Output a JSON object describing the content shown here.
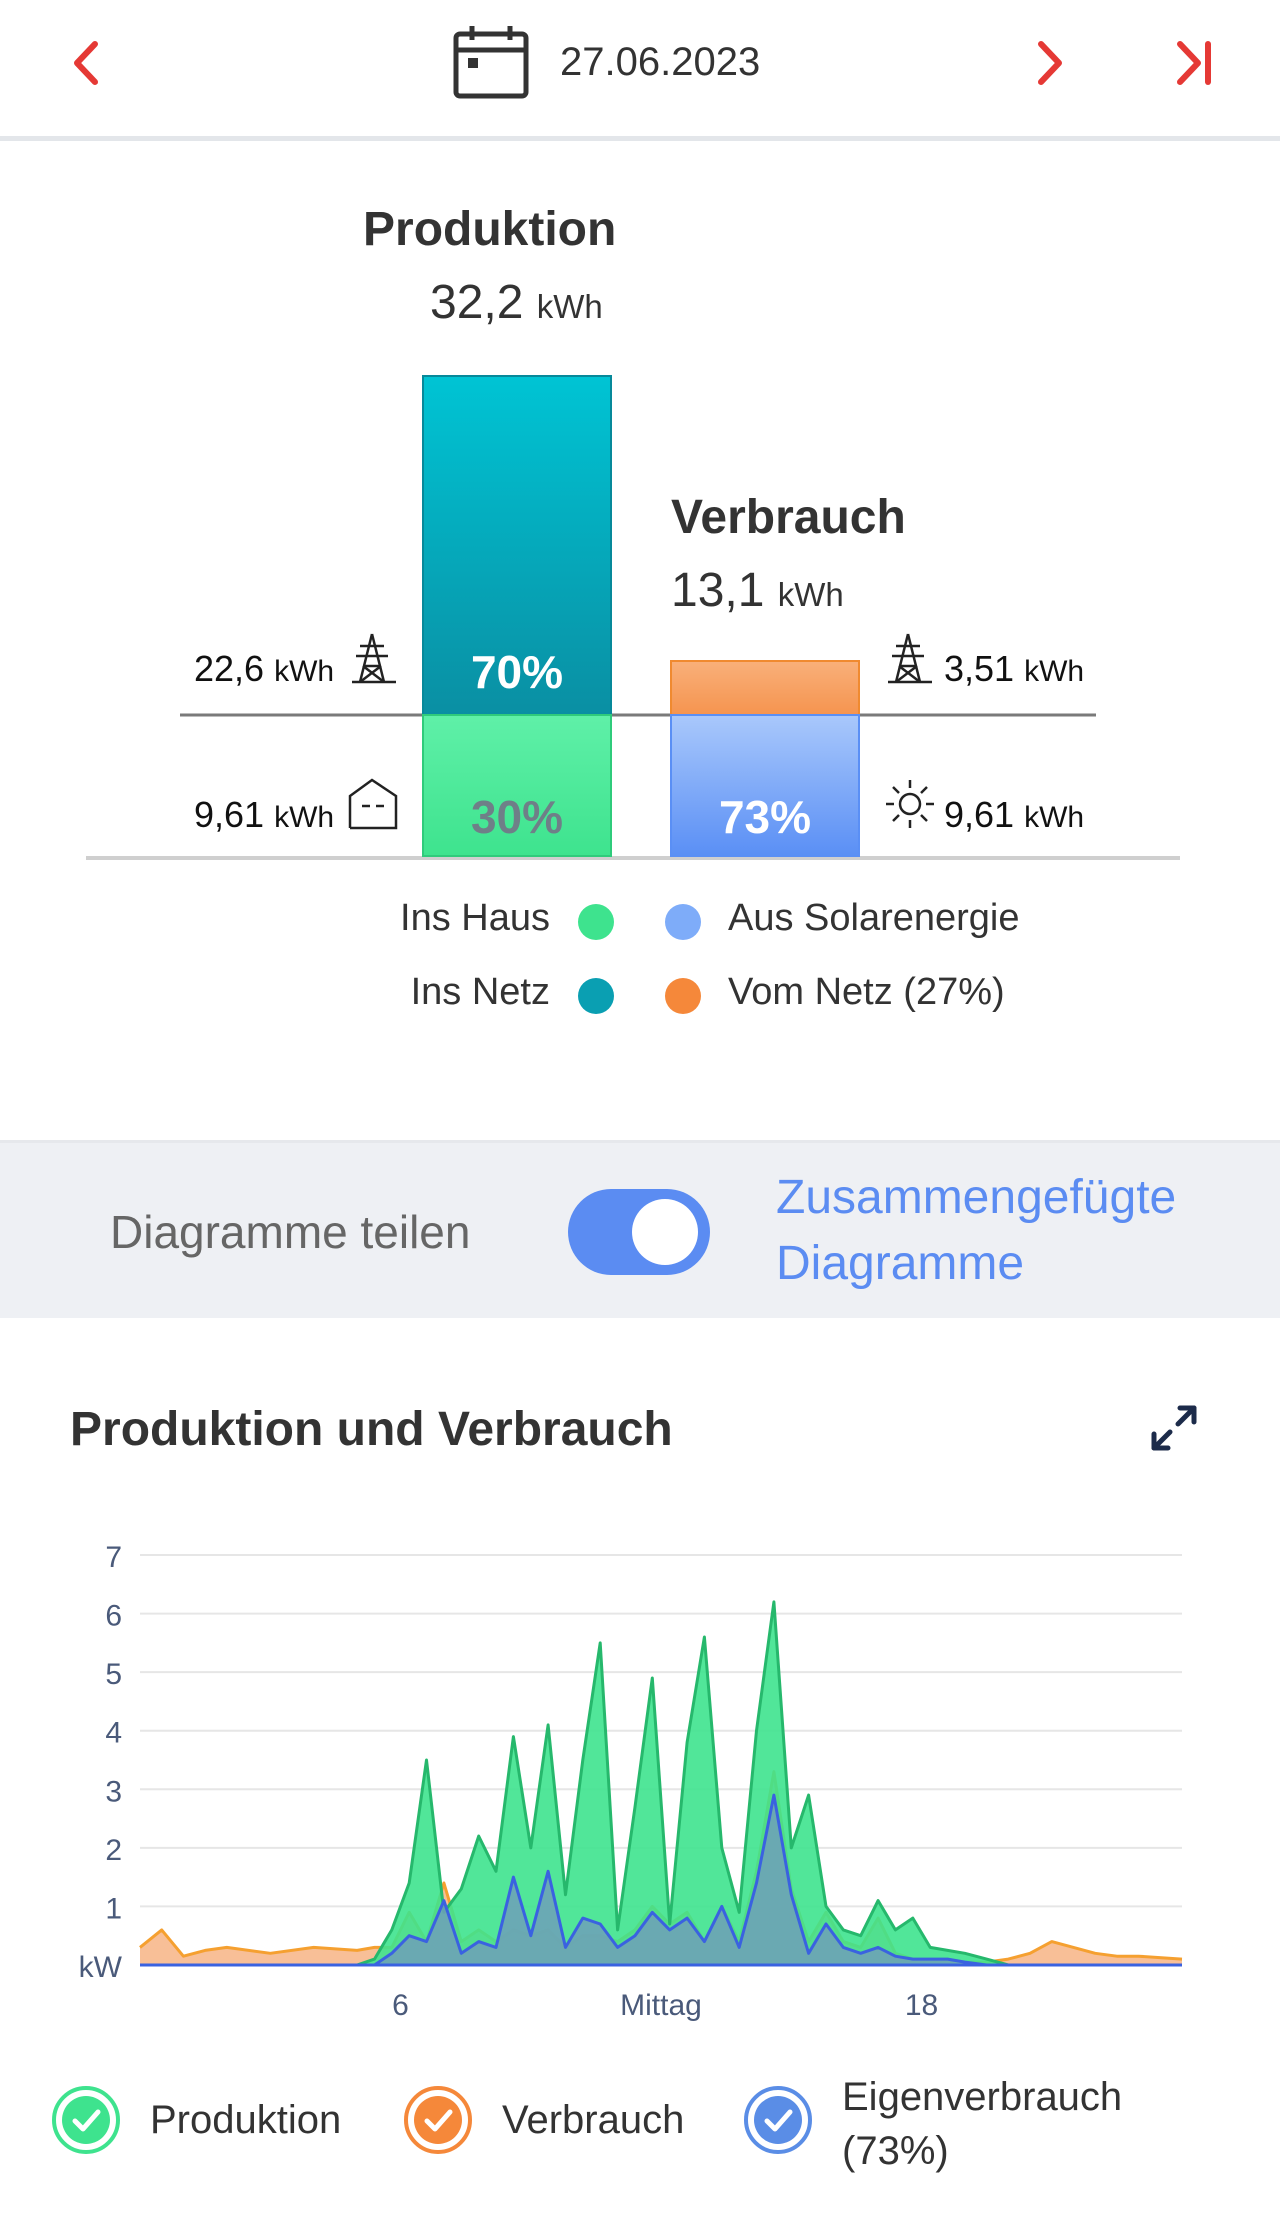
{
  "header": {
    "date": "27.06.2023",
    "prev_icon": "chevron-left-icon",
    "next_icon": "chevron-right-icon",
    "last_icon": "skip-to-end-icon",
    "calendar_icon": "calendar-icon",
    "accent_color": "#e53935"
  },
  "summary": {
    "production": {
      "title": "Produktion",
      "value": "32,2",
      "unit": "kWh"
    },
    "consumption": {
      "title": "Verbrauch",
      "value": "13,1",
      "unit": "kWh"
    },
    "prod_bar": {
      "top_pct": "70%",
      "bottom_pct": "30%"
    },
    "cons_bar": {
      "bottom_pct": "73%"
    },
    "left_grid": {
      "value": "22,6",
      "unit": "kWh"
    },
    "left_house": {
      "value": "9,61",
      "unit": "kWh"
    },
    "right_grid": {
      "value": "3,51",
      "unit": "kWh"
    },
    "right_sun": {
      "value": "9,61",
      "unit": "kWh"
    },
    "colors": {
      "ins_haus": "#3ee38e",
      "ins_netz": "#0a9fb2",
      "solar": "#7eacf9",
      "vom_netz": "#f5883a"
    },
    "legend": {
      "ins_haus": "Ins Haus",
      "ins_netz": "Ins Netz",
      "solar": "Aus Solarenergie",
      "vom_netz": "Vom Netz (27%)"
    }
  },
  "switch": {
    "left_label": "Diagramme teilen",
    "right_label_line1": "Zusammengefügte",
    "right_label_line2": "Diagramme",
    "state": "on"
  },
  "chart_section": {
    "title": "Produktion und Verbrauch",
    "expand_icon": "expand-icon"
  },
  "chart_data": {
    "type": "area",
    "title": "Produktion und Verbrauch",
    "ylabel": "kW",
    "ylim": [
      0,
      7
    ],
    "yticks": [
      "1",
      "2",
      "3",
      "4",
      "5",
      "6",
      "7"
    ],
    "xlim": [
      0,
      24
    ],
    "xticks": [
      {
        "x": 6,
        "label": "6"
      },
      {
        "x": 12,
        "label": "Mittag"
      },
      {
        "x": 18,
        "label": "18"
      }
    ],
    "x": [
      0,
      0.5,
      1,
      1.5,
      2,
      3,
      4,
      5,
      5.4,
      5.8,
      6.2,
      6.6,
      7,
      7.4,
      7.8,
      8.2,
      8.6,
      9,
      9.4,
      9.8,
      10.2,
      10.6,
      11,
      11.4,
      11.8,
      12.2,
      12.6,
      13,
      13.4,
      13.8,
      14.2,
      14.6,
      15,
      15.4,
      15.8,
      16.2,
      16.6,
      17,
      17.4,
      17.8,
      18.2,
      18.6,
      19,
      19.5,
      20,
      20.5,
      21,
      21.5,
      22,
      22.5,
      23,
      24
    ],
    "series": [
      {
        "name": "Produktion",
        "color": "#3ee38e",
        "values": [
          0,
          0,
          0,
          0,
          0,
          0,
          0,
          0,
          0.1,
          0.6,
          1.4,
          3.5,
          0.9,
          1.3,
          2.2,
          1.6,
          3.9,
          2.0,
          4.1,
          1.2,
          3.5,
          5.5,
          0.6,
          2.7,
          4.9,
          0.7,
          3.8,
          5.6,
          2.0,
          0.9,
          4.0,
          6.2,
          2.0,
          2.9,
          1.0,
          0.6,
          0.5,
          1.1,
          0.6,
          0.8,
          0.3,
          0.25,
          0.2,
          0.1,
          0,
          0,
          0,
          0,
          0,
          0,
          0,
          0
        ]
      },
      {
        "name": "Verbrauch",
        "color": "#f5883a",
        "values": [
          0.3,
          0.6,
          0.15,
          0.25,
          0.3,
          0.2,
          0.3,
          0.25,
          0.3,
          0.3,
          0.9,
          0.4,
          1.4,
          0.4,
          0.6,
          0.4,
          0.6,
          0.5,
          0.6,
          0.3,
          0.5,
          0.5,
          0.4,
          0.6,
          1.0,
          0.7,
          0.9,
          0.4,
          1.0,
          0.4,
          1.6,
          3.3,
          1.3,
          0.4,
          0.9,
          0.4,
          0.3,
          0.8,
          0.2,
          0.1,
          0.1,
          0.1,
          0.05,
          0.05,
          0.1,
          0.2,
          0.4,
          0.3,
          0.2,
          0.15,
          0.15,
          0.1
        ]
      },
      {
        "name": "Eigenverbrauch (73%)",
        "color": "#5a8de6",
        "values": [
          0,
          0,
          0,
          0,
          0,
          0,
          0,
          0,
          0,
          0.2,
          0.5,
          0.4,
          1.1,
          0.2,
          0.4,
          0.3,
          1.5,
          0.5,
          1.6,
          0.3,
          0.8,
          0.7,
          0.3,
          0.5,
          0.9,
          0.6,
          0.8,
          0.4,
          1.0,
          0.3,
          1.4,
          2.9,
          1.2,
          0.2,
          0.7,
          0.3,
          0.2,
          0.3,
          0.15,
          0.1,
          0.1,
          0.1,
          0.05,
          0,
          0,
          0,
          0,
          0,
          0,
          0,
          0,
          0
        ]
      }
    ]
  },
  "chart_legend": {
    "items": [
      {
        "label": "Produktion",
        "color": "#3ee38e"
      },
      {
        "label": "Verbrauch",
        "color": "#f5883a"
      },
      {
        "label_line1": "Eigenverbrauch",
        "label_line2": "(73%)",
        "color": "#5a8de6"
      }
    ]
  }
}
